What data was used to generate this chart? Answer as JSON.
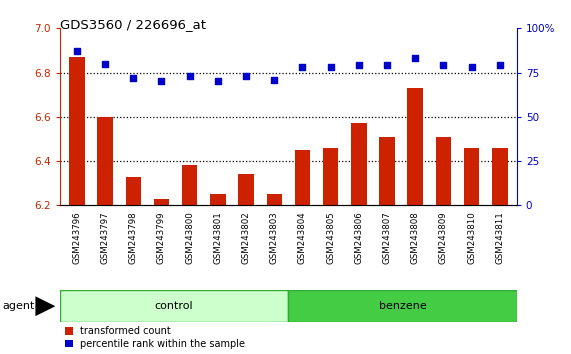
{
  "title": "GDS3560 / 226696_at",
  "categories": [
    "GSM243796",
    "GSM243797",
    "GSM243798",
    "GSM243799",
    "GSM243800",
    "GSM243801",
    "GSM243802",
    "GSM243803",
    "GSM243804",
    "GSM243805",
    "GSM243806",
    "GSM243807",
    "GSM243808",
    "GSM243809",
    "GSM243810",
    "GSM243811"
  ],
  "bar_values": [
    6.87,
    6.6,
    6.33,
    6.23,
    6.38,
    6.25,
    6.34,
    6.25,
    6.45,
    6.46,
    6.57,
    6.51,
    6.73,
    6.51,
    6.46,
    6.46
  ],
  "dot_values": [
    87,
    80,
    72,
    70,
    73,
    70,
    73,
    71,
    78,
    78,
    79,
    79,
    83,
    79,
    78,
    79
  ],
  "bar_color": "#cc2200",
  "dot_color": "#0000cc",
  "ylim_left": [
    6.2,
    7.0
  ],
  "ylim_right": [
    0,
    100
  ],
  "yticks_left": [
    6.2,
    6.4,
    6.6,
    6.8,
    7.0
  ],
  "yticks_right": [
    0,
    25,
    50,
    75,
    100
  ],
  "grid_values": [
    6.4,
    6.6,
    6.8
  ],
  "groups": [
    {
      "label": "control",
      "start": 0,
      "end": 8,
      "color": "#ccffcc"
    },
    {
      "label": "benzene",
      "start": 8,
      "end": 16,
      "color": "#44cc44"
    }
  ],
  "legend": [
    {
      "label": "transformed count",
      "color": "#cc2200"
    },
    {
      "label": "percentile rank within the sample",
      "color": "#0000cc"
    }
  ],
  "bg_color": "#ffffff",
  "tick_color_left": "#cc2200",
  "tick_color_right": "#0000cc",
  "xtick_bg": "#c0c0c0",
  "agent_label": "agent"
}
